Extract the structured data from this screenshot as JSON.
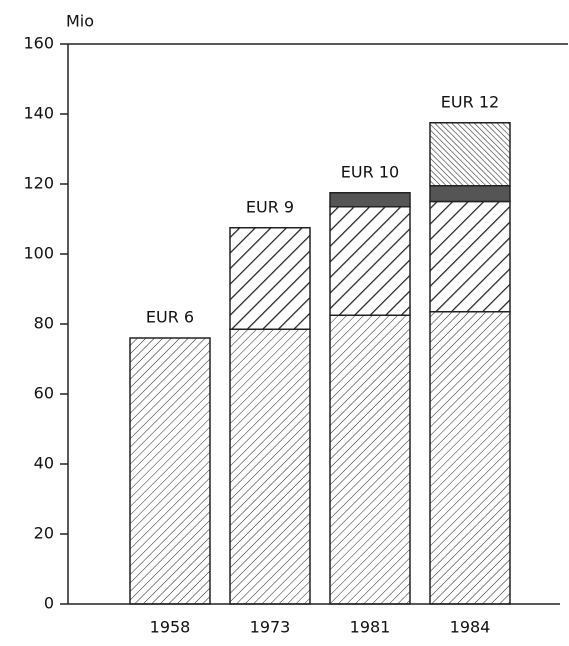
{
  "chart_data": {
    "type": "stacked-bar",
    "y_label": "Mio",
    "categories": [
      "1958",
      "1973",
      "1981",
      "1984"
    ],
    "bar_labels": [
      "EUR 6",
      "EUR 9",
      "EUR 10",
      "EUR 12"
    ],
    "series": [
      {
        "color": "#222222",
        "pattern": "fine-hatch",
        "values": [
          76,
          78.5,
          82.5,
          83.5
        ]
      },
      {
        "color": "#222222",
        "pattern": "wide-hatch",
        "values": [
          null,
          29,
          31,
          31.5
        ]
      },
      {
        "color": "#555555",
        "pattern": "solid",
        "values": [
          null,
          null,
          4,
          4.5
        ]
      },
      {
        "color": "#333333",
        "pattern": "back-hatch",
        "values": [
          null,
          null,
          null,
          18
        ]
      }
    ],
    "ylim": [
      0,
      160
    ],
    "yticks": [
      0,
      20,
      40,
      60,
      80,
      100,
      120,
      140,
      160
    ]
  }
}
